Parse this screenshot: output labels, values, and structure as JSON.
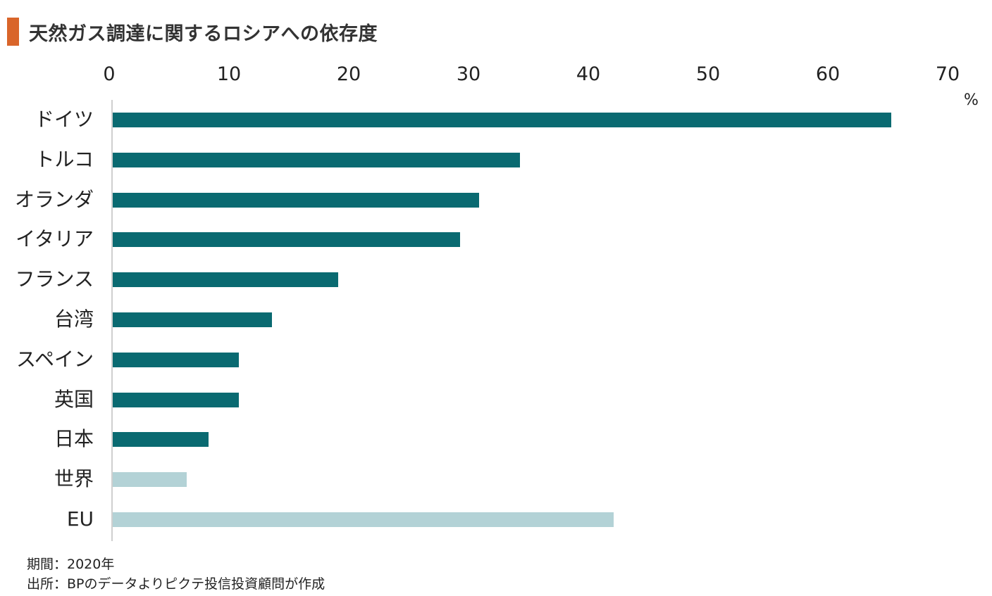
{
  "title": "天然ガス調達に関するロシアへの依存度",
  "colors": {
    "accent": "#d9652a",
    "primary_bar": "#0a6a71",
    "light_bar": "#b3d2d6"
  },
  "chart_data": {
    "type": "bar",
    "orientation": "horizontal",
    "title": "天然ガス調達に関するロシアへの依存度",
    "xlabel": "%",
    "xlim": [
      0,
      70
    ],
    "xticks": [
      "0",
      "10",
      "20",
      "30",
      "40",
      "50",
      "60",
      "70"
    ],
    "xaxis_position": "top",
    "categories": [
      "ドイツ",
      "トルコ",
      "オランダ",
      "イタリア",
      "フランス",
      "台湾",
      "スペイン",
      "英国",
      "日本",
      "世界",
      "EU"
    ],
    "values": [
      65,
      34,
      30.6,
      29,
      18.8,
      13.3,
      10.5,
      10.5,
      8,
      6.2,
      41.8
    ],
    "highlight": [
      false,
      false,
      false,
      false,
      false,
      false,
      false,
      false,
      false,
      true,
      true
    ]
  },
  "footer": {
    "period": "期間：2020年",
    "source": "出所：BPのデータよりピクテ投信投資顧問が作成"
  }
}
